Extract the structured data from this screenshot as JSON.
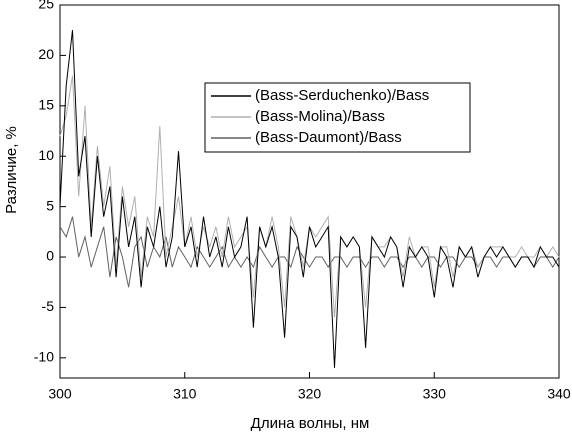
{
  "chart_data": {
    "type": "line",
    "x_label": "Длина волны, нм",
    "y_label": "Различие, %",
    "x": [
      300,
      300.5,
      301,
      301.5,
      302,
      302.5,
      303,
      303.5,
      304,
      304.5,
      305,
      305.5,
      306,
      306.5,
      307,
      307.5,
      308,
      308.5,
      309,
      309.5,
      310,
      310.5,
      311,
      311.5,
      312,
      312.5,
      313,
      313.5,
      314,
      314.5,
      315,
      315.5,
      316,
      316.5,
      317,
      317.5,
      318,
      318.5,
      319,
      319.5,
      320,
      320.5,
      321,
      321.5,
      322,
      322.5,
      323,
      323.5,
      324,
      324.5,
      325,
      325.5,
      326,
      326.5,
      327,
      327.5,
      328,
      328.5,
      329,
      329.5,
      330,
      330.5,
      331,
      331.5,
      332,
      332.5,
      333,
      333.5,
      334,
      334.5,
      335,
      335.5,
      336,
      336.5,
      337,
      337.5,
      338,
      338.5,
      339,
      339.5,
      340
    ],
    "series": [
      {
        "name": "(Bass-Serduchenko)/Bass",
        "color": "#000000",
        "values": [
          5,
          17,
          22.5,
          8,
          12,
          2,
          10,
          4,
          7,
          -2,
          6,
          1,
          4,
          -3,
          3,
          1,
          5,
          -1,
          2,
          10.5,
          1,
          3,
          -1,
          4,
          0,
          2,
          -1,
          3,
          0,
          1,
          4,
          -7,
          3,
          1,
          3,
          0,
          -8,
          3,
          2,
          -2,
          3,
          1,
          2,
          3,
          -11,
          2,
          1,
          2,
          1,
          -9,
          2,
          1,
          0,
          2,
          1,
          -3,
          1,
          0,
          1,
          0,
          -4,
          1,
          0,
          -3,
          1,
          0,
          1,
          -2,
          0,
          1,
          0,
          1,
          0,
          -1,
          0,
          0,
          -1,
          1,
          0,
          0,
          -1
        ]
      },
      {
        "name": "(Bass-Molina)/Bass",
        "color": "#b0b0b0",
        "values": [
          12,
          14,
          18,
          6,
          15,
          3,
          11,
          5,
          9,
          -1,
          7,
          3,
          6,
          -2,
          4,
          2,
          13,
          0,
          3,
          6,
          1,
          4,
          0,
          3,
          1,
          3,
          0,
          4,
          1,
          2,
          3,
          -4,
          3,
          1,
          4,
          1,
          -5,
          4,
          2,
          -1,
          3,
          2,
          3,
          4,
          -6,
          2,
          1,
          2,
          1,
          -5,
          2,
          1,
          1,
          2,
          1,
          -2,
          2,
          0,
          1,
          1,
          -3,
          1,
          1,
          -2,
          1,
          0,
          1,
          -1,
          0,
          1,
          1,
          1,
          0,
          0,
          1,
          0,
          0,
          1,
          0,
          1,
          0
        ]
      },
      {
        "name": "(Bass-Daumont)/Bass",
        "color": "#606060",
        "values": [
          3,
          2,
          4,
          0,
          2,
          -1,
          1,
          3,
          -2,
          2,
          0,
          -3,
          1,
          2,
          -1,
          1,
          0,
          2,
          -1,
          1,
          0,
          -1,
          1,
          0,
          -1,
          0,
          1,
          -1,
          0,
          -1,
          0,
          -1,
          1,
          0,
          -1,
          0,
          0,
          -1,
          1,
          0,
          -1,
          0,
          0,
          -1,
          0,
          0,
          -1,
          0,
          0,
          -1,
          0,
          0,
          -1,
          0,
          0,
          -1,
          0,
          0,
          -1,
          0,
          0,
          -1,
          0,
          0,
          -1,
          0,
          0,
          -1,
          0,
          0,
          -1,
          0,
          0,
          -1,
          0,
          0,
          -1,
          0,
          0,
          -1,
          0
        ]
      }
    ],
    "xlim": [
      300,
      340
    ],
    "xticks": [
      300,
      310,
      320,
      330,
      340
    ],
    "ylim": [
      -12,
      25
    ],
    "yticks": [
      -10,
      -5,
      0,
      5,
      10,
      15,
      20,
      25
    ]
  }
}
